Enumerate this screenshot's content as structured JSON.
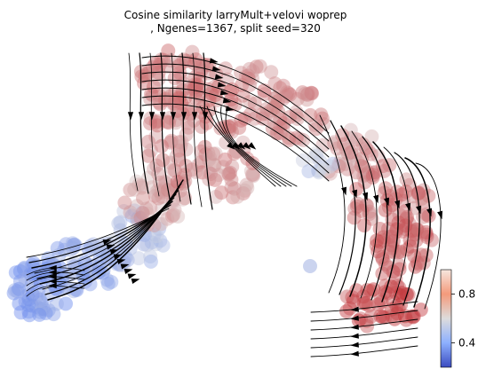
{
  "chart_data": {
    "type": "scatter",
    "title_line1": "Cosine similarity larryMult+velovi woprep",
    "title_line2": ", Ngenes=1367, split seed=320",
    "xlabel": "",
    "ylabel": "",
    "grid": false,
    "axes_visible": false,
    "overlay": "velocity streamlines",
    "colormap": "coolwarm",
    "colors": {
      "low": "#5b7ff0",
      "mid": "#dcdddd",
      "high": "#c0282d"
    },
    "colorbar": {
      "range": [
        0.2,
        1.0
      ],
      "ticks": [
        0.4,
        0.8
      ],
      "tick_labels": [
        "0.4",
        "0.8"
      ]
    }
  }
}
